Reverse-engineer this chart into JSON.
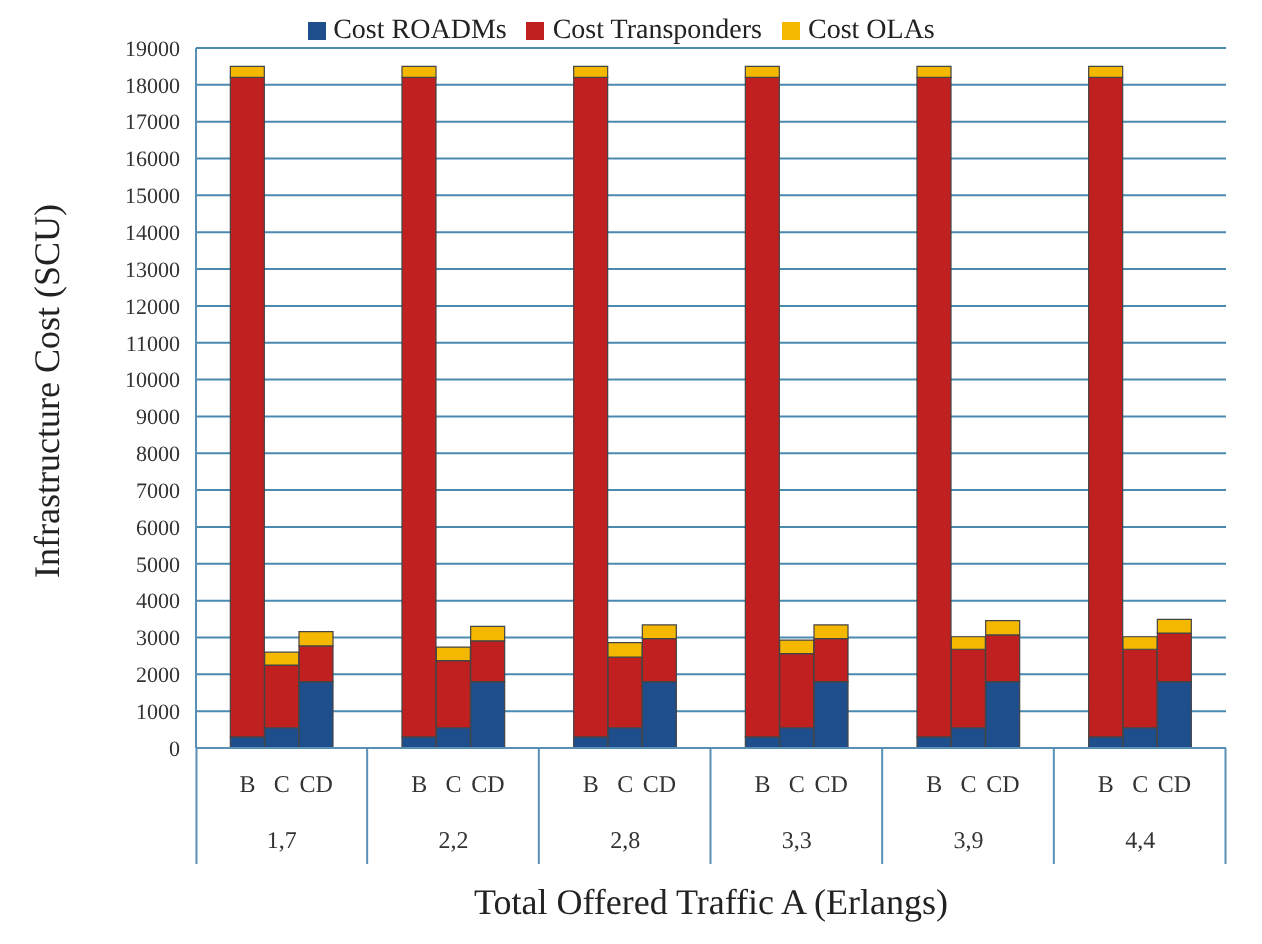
{
  "chart_data": {
    "type": "bar",
    "stacked": true,
    "xlabel": "Total Offered Traffic A (Erlangs)",
    "ylabel": "Infrastructure Cost (SCU)",
    "categories": [
      null,
      "B",
      "C",
      "CD",
      null,
      null,
      "B",
      "C",
      "CD",
      null,
      null,
      "B",
      "C",
      "CD",
      null,
      null,
      "B",
      "C",
      "CD",
      null,
      null,
      "B",
      "C",
      "CD",
      null,
      null,
      "B",
      "C",
      "CD",
      null
    ],
    "annotations": [
      "1,7",
      "2,2",
      "2,8",
      "3,3",
      "3,9",
      "4,4"
    ],
    "series": [
      {
        "name": "Cost ROADMs",
        "color": "#1f4e8c",
        "values": [
          null,
          300,
          550,
          1800,
          null,
          null,
          300,
          550,
          1800,
          null,
          null,
          300,
          550,
          1800,
          null,
          null,
          300,
          550,
          1800,
          null,
          null,
          300,
          550,
          1800,
          null,
          null,
          300,
          550,
          1800,
          null
        ]
      },
      {
        "name": "Cost Transponders",
        "color": "#c0201f",
        "values": [
          null,
          17900,
          1700,
          970,
          null,
          null,
          17900,
          1820,
          1110,
          null,
          null,
          17900,
          1920,
          1170,
          null,
          null,
          17900,
          2010,
          1170,
          null,
          null,
          17900,
          2130,
          1270,
          null,
          null,
          17900,
          2130,
          1320,
          null
        ]
      },
      {
        "name": "Cost OLAs",
        "color": "#f5b800",
        "values": [
          null,
          300,
          350,
          390,
          null,
          null,
          300,
          370,
          390,
          null,
          null,
          300,
          390,
          370,
          null,
          null,
          300,
          370,
          370,
          null,
          null,
          300,
          340,
          390,
          null,
          null,
          300,
          340,
          370,
          null
        ]
      }
    ],
    "ylim": [
      0,
      19000
    ],
    "yticks": [
      0,
      1000,
      2000,
      3000,
      4000,
      5000,
      6000,
      7000,
      8000,
      9000,
      10000,
      11000,
      12000,
      13000,
      14000,
      15000,
      16000,
      17000,
      18000,
      19000
    ],
    "grid": "y",
    "legend": "top"
  }
}
